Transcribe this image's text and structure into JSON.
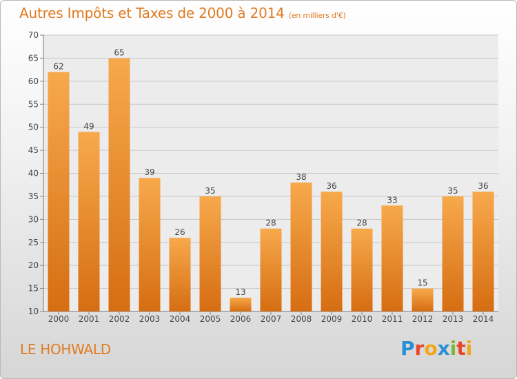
{
  "header": {
    "title": "Autres Impôts et Taxes de 2000 à 2014",
    "unit": "(en milliers d'€)"
  },
  "place": "LE HOHWALD",
  "logo": {
    "text": "Proxiti",
    "letters": [
      {
        "ch": "P",
        "color": "#2a8fd6"
      },
      {
        "ch": "r",
        "color": "#e8452c"
      },
      {
        "ch": "o",
        "color": "#f2a71b"
      },
      {
        "ch": "x",
        "color": "#2a8fd6"
      },
      {
        "ch": "i",
        "color": "#7cb82f"
      },
      {
        "ch": "t",
        "color": "#e8452c"
      },
      {
        "ch": "i",
        "color": "#f2a71b"
      }
    ]
  },
  "colors": {
    "bar_top": "#f7a94c",
    "bar_bottom": "#d66d12",
    "accent": "#e07b22",
    "grid": "#c8c8c8",
    "axis_text": "#444444"
  },
  "chart_data": {
    "type": "bar",
    "categories": [
      "2000",
      "2001",
      "2002",
      "2003",
      "2004",
      "2005",
      "2006",
      "2007",
      "2008",
      "2009",
      "2010",
      "2011",
      "2012",
      "2013",
      "2014"
    ],
    "values": [
      62,
      49,
      65,
      39,
      26,
      35,
      13,
      28,
      38,
      36,
      28,
      33,
      15,
      35,
      36
    ],
    "ylim": [
      10,
      70
    ],
    "yticks": [
      10,
      15,
      20,
      25,
      30,
      35,
      40,
      45,
      50,
      55,
      60,
      65,
      70
    ],
    "grid": true,
    "data_labels": true
  }
}
